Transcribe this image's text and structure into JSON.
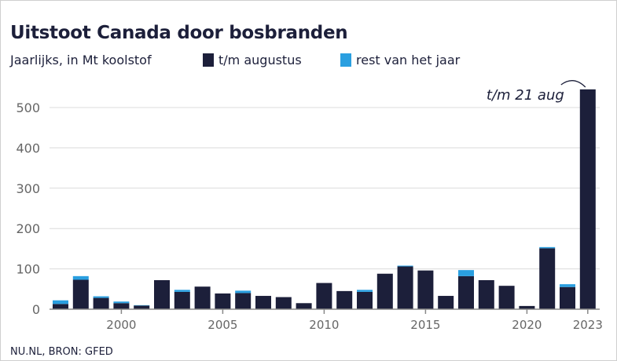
{
  "chart_data": {
    "type": "bar",
    "stacked": true,
    "title": "Uitstoot Canada door bosbranden",
    "subtitle": "Jaarlijks, in Mt koolstof",
    "legend_position": "top",
    "x": [
      1997,
      1998,
      1999,
      2000,
      2001,
      2002,
      2003,
      2004,
      2005,
      2006,
      2007,
      2008,
      2009,
      2010,
      2011,
      2012,
      2013,
      2014,
      2015,
      2016,
      2017,
      2018,
      2019,
      2020,
      2021,
      2022,
      2023
    ],
    "xtick_labels": [
      "2000",
      "2005",
      "2010",
      "2015",
      "2020",
      "2023"
    ],
    "ytick_labels": [
      "0",
      "100",
      "200",
      "300",
      "400",
      "500"
    ],
    "ylim": [
      0,
      560
    ],
    "grid": true,
    "series": [
      {
        "name": "t/m augustus",
        "color": "#1c1f3a",
        "values": [
          13,
          73,
          28,
          15,
          9,
          72,
          43,
          56,
          39,
          40,
          33,
          30,
          15,
          65,
          45,
          43,
          88,
          106,
          96,
          33,
          82,
          72,
          58,
          8,
          151,
          55,
          545
        ]
      },
      {
        "name": "rest van het jaar",
        "color": "#2a9fe0",
        "values": [
          9,
          9,
          4,
          4,
          1,
          0,
          5,
          0,
          0,
          6,
          0,
          0,
          0,
          0,
          0,
          5,
          0,
          2,
          0,
          0,
          15,
          0,
          0,
          0,
          3,
          7,
          0
        ]
      }
    ],
    "annotation": {
      "text": "t/m 21 aug",
      "year": 2023
    },
    "source": "NU.NL, BRON: GFED"
  }
}
